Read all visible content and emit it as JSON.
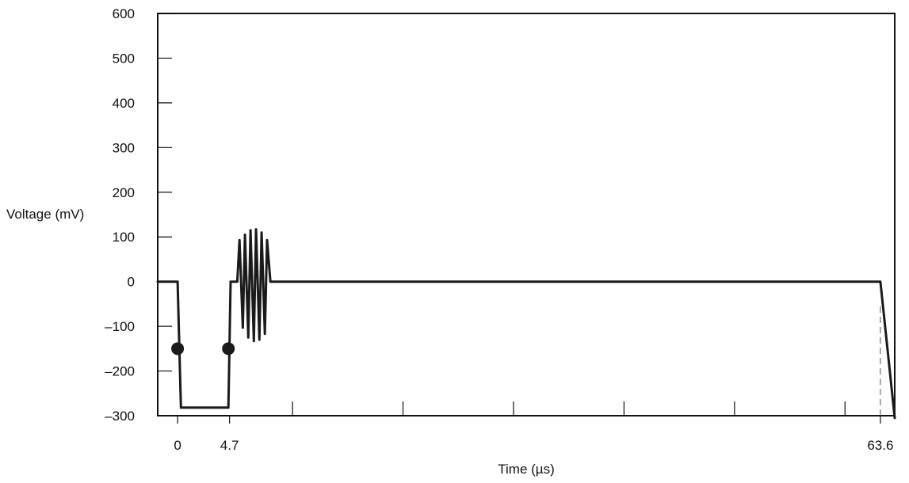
{
  "chart_data": {
    "type": "line",
    "title": "",
    "xlabel": "Time (µs)",
    "ylabel": "Voltage (mV)",
    "xlim": [
      -1.8,
      64.9
    ],
    "ylim": [
      -300,
      600
    ],
    "y_ticks": [
      600,
      500,
      400,
      300,
      200,
      100,
      0,
      -100,
      -200,
      -300
    ],
    "y_tick_labels": [
      "600",
      "500",
      "400",
      "300",
      "200",
      "100",
      "0",
      "–100",
      "–200",
      "–300"
    ],
    "x_ticks": [
      0,
      4.7,
      10.4,
      20.4,
      30.4,
      40.4,
      50.4,
      60.4,
      63.6
    ],
    "x_tick_labels": [
      "0",
      "4.7",
      "",
      "",
      "",
      "",
      "",
      "",
      "63.6"
    ],
    "grid": false,
    "series": [
      {
        "name": "",
        "color": "#1a1a1a",
        "x": [
          -1.8,
          0,
          0.3,
          4.6,
          4.8,
          5.4,
          5.6,
          5.9,
          6.1,
          6.4,
          6.6,
          6.9,
          7.1,
          7.4,
          7.6,
          7.9,
          8.1,
          8.4,
          8.6,
          63.6,
          64.9
        ],
        "y": [
          0,
          0,
          -282,
          -282,
          0,
          0,
          93,
          -103,
          105,
          -125,
          115,
          -133,
          117,
          -130,
          110,
          -117,
          93,
          0,
          0,
          0,
          -305
        ]
      }
    ],
    "markers": [
      {
        "x": 0.0,
        "y": -150
      },
      {
        "x": 4.6,
        "y": -150
      }
    ],
    "annotations": [
      {
        "type": "dashed-vline",
        "x": 63.6,
        "y_from": -300,
        "y_to": -50
      }
    ]
  }
}
